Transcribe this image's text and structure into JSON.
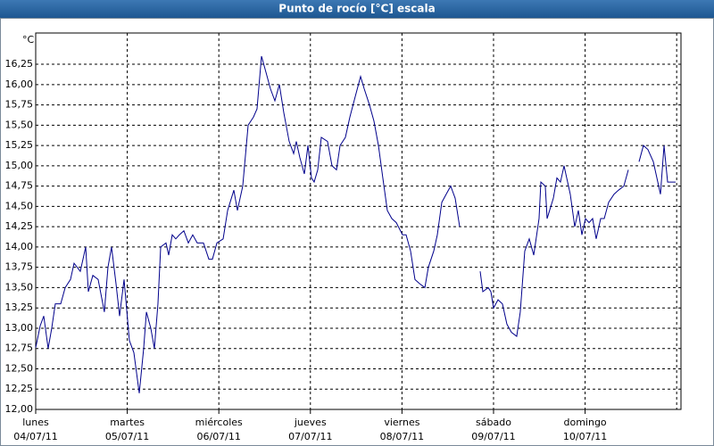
{
  "chart_data": {
    "type": "line",
    "title": "Punto de rocío [°C] escala",
    "y_unit": "°C",
    "x": [
      0,
      0.049,
      0.088,
      0.136,
      0.175,
      0.214,
      0.273,
      0.322,
      0.38,
      0.419,
      0.487,
      0.546,
      0.575,
      0.624,
      0.682,
      0.75,
      0.789,
      0.828,
      0.877,
      0.916,
      0.965,
      1.023,
      1.072,
      1.131,
      1.179,
      1.209,
      1.257,
      1.296,
      1.335,
      1.365,
      1.423,
      1.452,
      1.491,
      1.53,
      1.569,
      1.618,
      1.667,
      1.715,
      1.764,
      1.832,
      1.891,
      1.93,
      1.979,
      2.047,
      2.096,
      2.164,
      2.203,
      2.261,
      2.32,
      2.378,
      2.417,
      2.466,
      2.515,
      2.563,
      2.612,
      2.661,
      2.71,
      2.768,
      2.817,
      2.846,
      2.885,
      2.934,
      2.973,
      3.012,
      3.041,
      3.08,
      3.119,
      3.187,
      3.236,
      3.285,
      3.324,
      3.382,
      3.431,
      3.489,
      3.548,
      3.587,
      3.645,
      3.694,
      3.743,
      3.791,
      3.84,
      3.889,
      3.938,
      4.006,
      4.045,
      4.094,
      4.142,
      4.191,
      4.25,
      4.288,
      4.347,
      4.386,
      4.435,
      4.483,
      4.532,
      4.581,
      4.63,
      4.8,
      4.854,
      4.883,
      4.942,
      4.971,
      5.0,
      5.049,
      5.097,
      5.146,
      5.195,
      5.253,
      5.292,
      5.341,
      5.39,
      5.439,
      5.497,
      5.517,
      5.565,
      5.585,
      5.653,
      5.692,
      5.731,
      5.77,
      5.838,
      5.887,
      5.926,
      5.965,
      6.004,
      6.043,
      6.082,
      6.121,
      6.17,
      6.209,
      6.257,
      6.316,
      6.365,
      6.423,
      6.472,
      6.53,
      6.589,
      6.637,
      6.686,
      6.745,
      6.784,
      6.823,
      6.862,
      6.901,
      6.94,
      6.988
    ],
    "series": [
      {
        "name": "Punto de rocío",
        "color": "#00008b",
        "values": [
          12.76,
          13.03,
          13.15,
          12.75,
          13.0,
          13.3,
          13.3,
          13.5,
          13.6,
          13.8,
          13.7,
          14.0,
          13.45,
          13.65,
          13.6,
          13.2,
          13.75,
          14.0,
          13.55,
          13.15,
          13.6,
          12.85,
          12.7,
          12.2,
          12.75,
          13.2,
          13.0,
          12.75,
          13.3,
          14.0,
          14.05,
          13.9,
          14.15,
          14.1,
          14.15,
          14.2,
          14.05,
          14.15,
          14.05,
          14.05,
          13.85,
          13.85,
          14.05,
          14.1,
          14.45,
          14.7,
          14.45,
          14.75,
          15.5,
          15.6,
          15.7,
          16.35,
          16.15,
          15.95,
          15.8,
          16.0,
          15.65,
          15.3,
          15.15,
          15.3,
          15.1,
          14.9,
          15.25,
          14.85,
          14.8,
          14.95,
          15.35,
          15.3,
          15.0,
          14.95,
          15.25,
          15.35,
          15.6,
          15.85,
          16.1,
          15.95,
          15.75,
          15.55,
          15.25,
          14.85,
          14.45,
          14.35,
          14.3,
          14.15,
          14.15,
          13.95,
          13.6,
          13.55,
          13.5,
          13.75,
          13.95,
          14.15,
          14.55,
          14.65,
          14.75,
          14.6,
          14.25,
          null,
          13.7,
          13.45,
          13.5,
          13.45,
          13.25,
          13.35,
          13.3,
          13.05,
          12.95,
          12.9,
          13.2,
          13.95,
          14.1,
          13.9,
          14.35,
          14.8,
          14.75,
          14.35,
          14.6,
          14.85,
          14.8,
          15.0,
          14.65,
          14.25,
          14.45,
          14.15,
          14.35,
          14.3,
          14.35,
          14.1,
          14.35,
          14.35,
          14.55,
          14.65,
          14.7,
          14.75,
          14.95,
          null,
          15.05,
          15.25,
          15.2,
          15.05,
          14.85,
          14.65,
          15.25,
          14.8,
          14.8,
          14.8
        ]
      }
    ],
    "xlim": [
      0,
      7.047
    ],
    "xticks": [
      {
        "value": 0,
        "label": "lunes"
      },
      {
        "value": 1,
        "label": "martes"
      },
      {
        "value": 2,
        "label": "miércoles"
      },
      {
        "value": 3,
        "label": "jueves"
      },
      {
        "value": 4,
        "label": "viernes"
      },
      {
        "value": 5,
        "label": "sábado"
      },
      {
        "value": 6,
        "label": "domingo"
      }
    ],
    "xtick_dates": [
      "04/07/11",
      "05/07/11",
      "06/07/11",
      "07/07/11",
      "08/07/11",
      "09/07/11",
      "10/07/11"
    ],
    "xgrid": [
      1,
      2,
      3,
      4,
      5,
      6,
      7
    ],
    "ylim": [
      12,
      16.635
    ],
    "yticks": [
      {
        "value": 12,
        "label": "12,00"
      },
      {
        "value": 12.25,
        "label": "12,25"
      },
      {
        "value": 12.5,
        "label": "12,50"
      },
      {
        "value": 12.75,
        "label": "12,75"
      },
      {
        "value": 13,
        "label": "13,00"
      },
      {
        "value": 13.25,
        "label": "13,25"
      },
      {
        "value": 13.5,
        "label": "13,50"
      },
      {
        "value": 13.75,
        "label": "13,75"
      },
      {
        "value": 14,
        "label": "14,00"
      },
      {
        "value": 14.25,
        "label": "14,25"
      },
      {
        "value": 14.5,
        "label": "14,50"
      },
      {
        "value": 14.75,
        "label": "14,75"
      },
      {
        "value": 15,
        "label": "15,00"
      },
      {
        "value": 15.25,
        "label": "15,25"
      },
      {
        "value": 15.5,
        "label": "15,50"
      },
      {
        "value": 15.75,
        "label": "15,75"
      },
      {
        "value": 16,
        "label": "16,00"
      },
      {
        "value": 16.25,
        "label": "16,25"
      }
    ],
    "grid": true
  }
}
